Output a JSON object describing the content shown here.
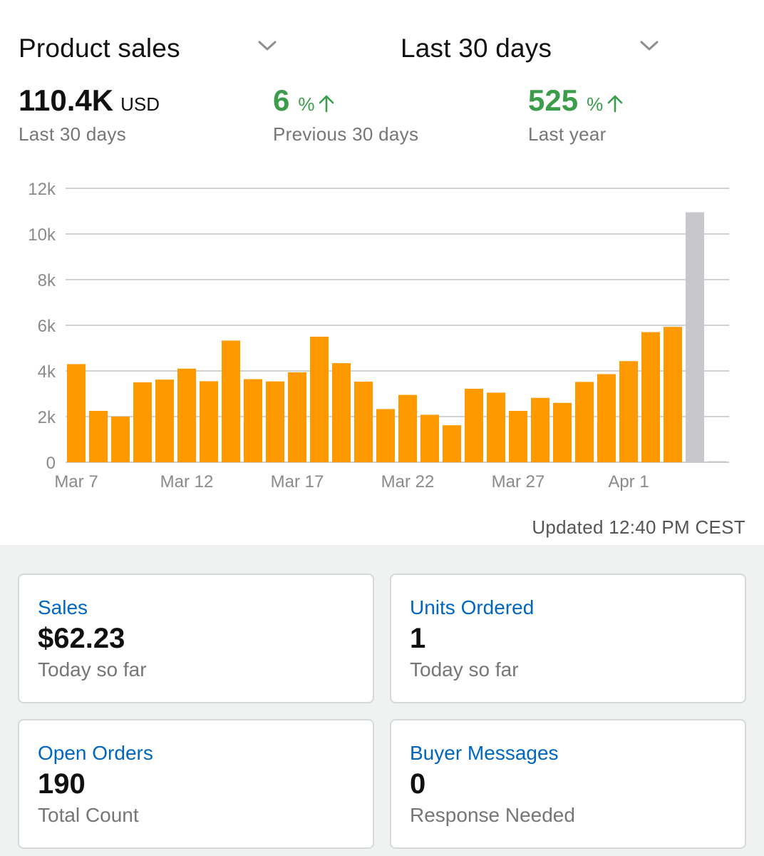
{
  "header": {
    "metric_dropdown": "Product sales",
    "range_dropdown": "Last 30 days"
  },
  "kpis": {
    "total": {
      "value": "110.4K",
      "unit": "USD",
      "label": "Last 30 days"
    },
    "previous": {
      "value": "6",
      "unit": "%",
      "label": "Previous 30 days",
      "trend": "up"
    },
    "last_year": {
      "value": "525",
      "unit": "%",
      "label": "Last year",
      "trend": "up"
    }
  },
  "colors": {
    "bar": "#ff9900",
    "bar_today": "#c8c7cc",
    "positive": "#3b9c4a",
    "link": "#0066c0"
  },
  "chart_data": {
    "type": "bar",
    "x_tick_labels": [
      "Mar 7",
      "Mar 12",
      "Mar 17",
      "Mar 22",
      "Mar 27",
      "Apr 1"
    ],
    "categories": [
      "Mar 7",
      "Mar 8",
      "Mar 9",
      "Mar 10",
      "Mar 11",
      "Mar 12",
      "Mar 13",
      "Mar 14",
      "Mar 15",
      "Mar 16",
      "Mar 17",
      "Mar 18",
      "Mar 19",
      "Mar 20",
      "Mar 21",
      "Mar 22",
      "Mar 23",
      "Mar 24",
      "Mar 25",
      "Mar 26",
      "Mar 27",
      "Mar 28",
      "Mar 29",
      "Mar 30",
      "Mar 31",
      "Apr 1",
      "Apr 2",
      "Apr 3",
      "Apr 4",
      "Apr 5"
    ],
    "values": [
      4300,
      2250,
      2000,
      3500,
      3620,
      4100,
      3550,
      5330,
      3640,
      3540,
      3940,
      5500,
      4340,
      3530,
      2330,
      2950,
      2080,
      1620,
      3220,
      3050,
      2250,
      2820,
      2600,
      3520,
      3860,
      4430,
      5700,
      5930,
      10950,
      0
    ],
    "today_index": 28,
    "ylim": [
      0,
      12000
    ],
    "y_ticks": [
      0,
      2000,
      4000,
      6000,
      8000,
      10000,
      12000
    ],
    "y_tick_labels": [
      "0",
      "2k",
      "4k",
      "6k",
      "8k",
      "10k",
      "12k"
    ],
    "grid": true,
    "xlabel": "",
    "ylabel": ""
  },
  "updated_text": "Updated 12:40 PM CEST",
  "cards": {
    "sales": {
      "title": "Sales",
      "value": "$62.23",
      "sub": "Today so far"
    },
    "units": {
      "title": "Units Ordered",
      "value": "1",
      "sub": "Today so far"
    },
    "orders": {
      "title": "Open Orders",
      "value": "190",
      "sub": "Total Count"
    },
    "messages": {
      "title": "Buyer Messages",
      "value": "0",
      "sub": "Response Needed"
    }
  }
}
